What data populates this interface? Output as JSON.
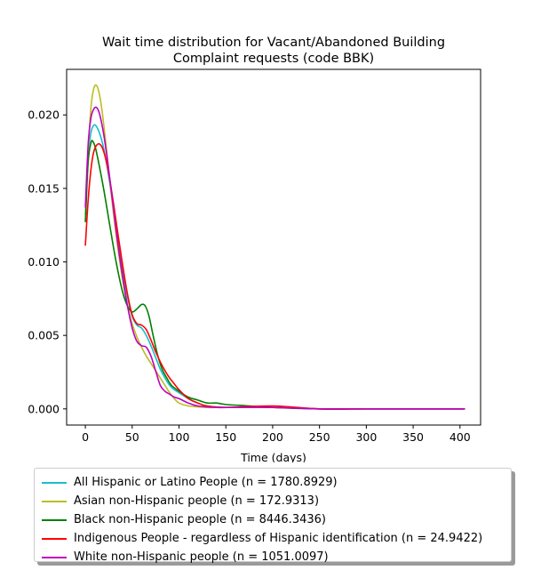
{
  "chart_data": {
    "type": "line",
    "title": "Wait time distribution  for Vacant/Abandoned Building\nComplaint  requests (code BBK)",
    "xlabel": "Time (days)",
    "ylabel": "",
    "xlim": [
      -20,
      422
    ],
    "ylim": [
      -0.0011,
      0.0231
    ],
    "x_ticks": [
      0,
      50,
      100,
      150,
      200,
      250,
      300,
      350,
      400
    ],
    "y_ticks": [
      0.0,
      0.005,
      0.01,
      0.015,
      0.02
    ],
    "x_tick_labels": [
      "0",
      "50",
      "100",
      "150",
      "200",
      "250",
      "300",
      "350",
      "400"
    ],
    "y_tick_labels": [
      "0.000",
      "0.005",
      "0.010",
      "0.015",
      "0.020"
    ],
    "grid": false,
    "legend_position": "below",
    "series": [
      {
        "name": "All Hispanic or Latino People (n = 1780.8929)",
        "color": "#17becf",
        "points": [
          [
            0,
            0.0132
          ],
          [
            3,
            0.0172
          ],
          [
            6,
            0.0188
          ],
          [
            9,
            0.0193
          ],
          [
            12,
            0.0192
          ],
          [
            16,
            0.0186
          ],
          [
            20,
            0.0176
          ],
          [
            25,
            0.0158
          ],
          [
            30,
            0.0136
          ],
          [
            35,
            0.0113
          ],
          [
            40,
            0.0093
          ],
          [
            45,
            0.0076
          ],
          [
            50,
            0.0063
          ],
          [
            55,
            0.0057
          ],
          [
            60,
            0.0055
          ],
          [
            65,
            0.005
          ],
          [
            70,
            0.0043
          ],
          [
            75,
            0.0035
          ],
          [
            80,
            0.0027
          ],
          [
            85,
            0.0021
          ],
          [
            90,
            0.0016
          ],
          [
            95,
            0.0013
          ],
          [
            100,
            0.0011
          ],
          [
            110,
            0.0007
          ],
          [
            120,
            0.0004
          ],
          [
            130,
            0.0002
          ],
          [
            150,
            0.0001
          ],
          [
            200,
            0.0001
          ],
          [
            250,
            0.0
          ],
          [
            300,
            0.0
          ],
          [
            350,
            0.0
          ],
          [
            400,
            0.0
          ],
          [
            403,
            0.0
          ]
        ]
      },
      {
        "name": "Asian non-Hispanic people (n = 172.9313)",
        "color": "#bcbd22",
        "points": [
          [
            0,
            0.0128
          ],
          [
            3,
            0.0175
          ],
          [
            6,
            0.0205
          ],
          [
            9,
            0.0218
          ],
          [
            12,
            0.022
          ],
          [
            15,
            0.0214
          ],
          [
            18,
            0.0202
          ],
          [
            22,
            0.018
          ],
          [
            26,
            0.0156
          ],
          [
            30,
            0.0133
          ],
          [
            35,
            0.0108
          ],
          [
            40,
            0.0087
          ],
          [
            45,
            0.007
          ],
          [
            50,
            0.0058
          ],
          [
            55,
            0.0049
          ],
          [
            60,
            0.0042
          ],
          [
            65,
            0.0036
          ],
          [
            70,
            0.0031
          ],
          [
            75,
            0.0026
          ],
          [
            80,
            0.0021
          ],
          [
            85,
            0.0016
          ],
          [
            90,
            0.0011
          ],
          [
            95,
            0.0007
          ],
          [
            100,
            0.0004
          ],
          [
            110,
            0.0002
          ],
          [
            130,
            0.0001
          ],
          [
            150,
            0.0001
          ],
          [
            200,
            0.0001
          ],
          [
            250,
            0.0
          ],
          [
            300,
            0.0
          ],
          [
            350,
            0.0
          ],
          [
            400,
            0.0
          ],
          [
            403,
            0.0
          ]
        ]
      },
      {
        "name": "Black non-Hispanic people (n = 8446.3436)",
        "color": "#008000",
        "points": [
          [
            0,
            0.0127
          ],
          [
            3,
            0.0168
          ],
          [
            6,
            0.0181
          ],
          [
            8,
            0.0182
          ],
          [
            11,
            0.0177
          ],
          [
            15,
            0.0165
          ],
          [
            20,
            0.0148
          ],
          [
            25,
            0.0129
          ],
          [
            30,
            0.011
          ],
          [
            35,
            0.0093
          ],
          [
            40,
            0.0079
          ],
          [
            45,
            0.007
          ],
          [
            50,
            0.0066
          ],
          [
            55,
            0.0068
          ],
          [
            60,
            0.0071
          ],
          [
            64,
            0.007
          ],
          [
            68,
            0.0063
          ],
          [
            72,
            0.0051
          ],
          [
            77,
            0.0037
          ],
          [
            82,
            0.0027
          ],
          [
            87,
            0.0021
          ],
          [
            92,
            0.0016
          ],
          [
            100,
            0.0012
          ],
          [
            110,
            0.0008
          ],
          [
            120,
            0.0006
          ],
          [
            130,
            0.0004
          ],
          [
            140,
            0.0004
          ],
          [
            150,
            0.0003
          ],
          [
            175,
            0.0002
          ],
          [
            200,
            0.0001
          ],
          [
            250,
            0.0
          ],
          [
            300,
            0.0
          ],
          [
            350,
            0.0
          ],
          [
            400,
            0.0
          ],
          [
            403,
            0.0
          ]
        ]
      },
      {
        "name": "Indigenous People - regardless of Hispanic identification (n = 24.9422)",
        "color": "#ff0000",
        "points": [
          [
            0,
            0.0111
          ],
          [
            3,
            0.0142
          ],
          [
            6,
            0.0163
          ],
          [
            9,
            0.0175
          ],
          [
            13,
            0.018
          ],
          [
            17,
            0.0179
          ],
          [
            21,
            0.0172
          ],
          [
            25,
            0.016
          ],
          [
            30,
            0.014
          ],
          [
            35,
            0.0118
          ],
          [
            40,
            0.0097
          ],
          [
            45,
            0.0078
          ],
          [
            50,
            0.0064
          ],
          [
            55,
            0.0058
          ],
          [
            60,
            0.0057
          ],
          [
            65,
            0.0054
          ],
          [
            70,
            0.0047
          ],
          [
            75,
            0.0039
          ],
          [
            80,
            0.0032
          ],
          [
            85,
            0.0026
          ],
          [
            90,
            0.0021
          ],
          [
            95,
            0.0017
          ],
          [
            100,
            0.0013
          ],
          [
            110,
            0.0007
          ],
          [
            120,
            0.0004
          ],
          [
            130,
            0.0002
          ],
          [
            150,
            0.0001
          ],
          [
            200,
            0.0002
          ],
          [
            250,
            0.0
          ],
          [
            300,
            0.0
          ],
          [
            350,
            0.0
          ],
          [
            400,
            0.0
          ],
          [
            403,
            0.0
          ]
        ]
      },
      {
        "name": "White non-Hispanic people (n = 1051.0097)",
        "color": "#bf00bf",
        "points": [
          [
            0,
            0.0137
          ],
          [
            3,
            0.018
          ],
          [
            6,
            0.0198
          ],
          [
            9,
            0.0204
          ],
          [
            12,
            0.0205
          ],
          [
            15,
            0.0201
          ],
          [
            19,
            0.0189
          ],
          [
            23,
            0.0172
          ],
          [
            27,
            0.0152
          ],
          [
            31,
            0.0131
          ],
          [
            35,
            0.0111
          ],
          [
            40,
            0.0089
          ],
          [
            45,
            0.007
          ],
          [
            50,
            0.0055
          ],
          [
            55,
            0.0046
          ],
          [
            60,
            0.0043
          ],
          [
            65,
            0.0042
          ],
          [
            70,
            0.0036
          ],
          [
            75,
            0.0026
          ],
          [
            80,
            0.0016
          ],
          [
            85,
            0.0012
          ],
          [
            90,
            0.001
          ],
          [
            95,
            0.0008
          ],
          [
            100,
            0.0007
          ],
          [
            110,
            0.0004
          ],
          [
            120,
            0.0002
          ],
          [
            140,
            0.0001
          ],
          [
            160,
            0.0001
          ],
          [
            200,
            0.0001
          ],
          [
            250,
            0.0
          ],
          [
            300,
            0.0
          ],
          [
            350,
            0.0
          ],
          [
            400,
            0.0
          ],
          [
            403,
            0.0
          ]
        ]
      }
    ]
  }
}
